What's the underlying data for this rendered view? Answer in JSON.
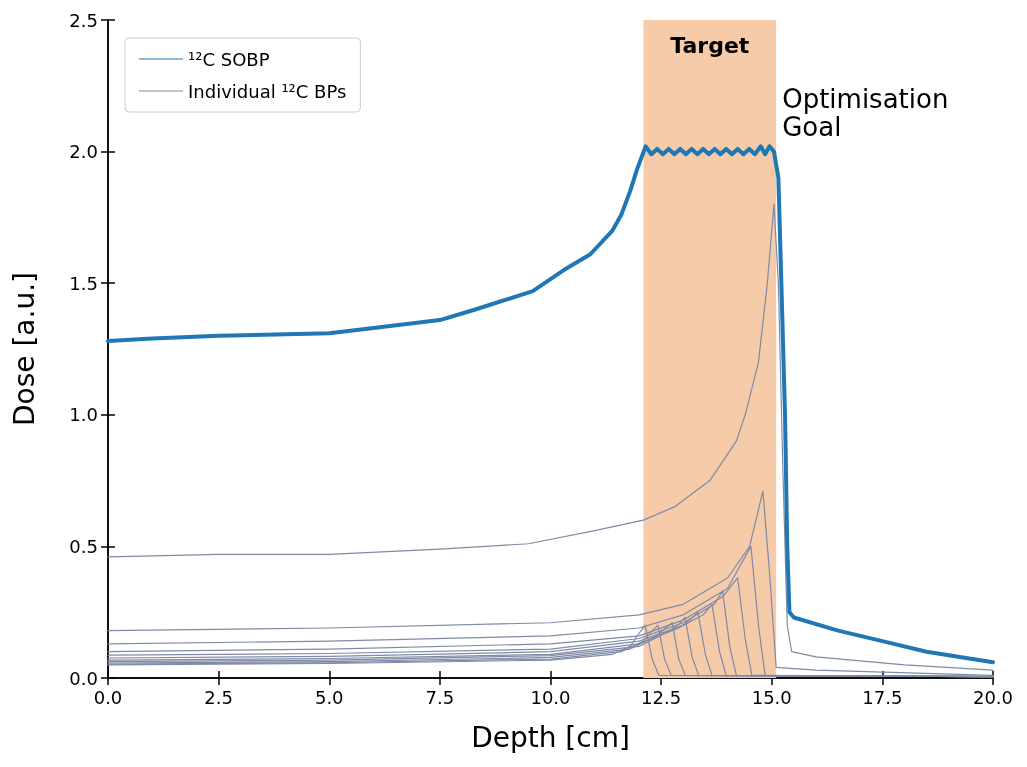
{
  "chart_data": {
    "type": "line",
    "xlabel": "Depth [cm]",
    "ylabel": "Dose [a.u.]",
    "xlim": [
      0,
      20
    ],
    "ylim": [
      0,
      2.5
    ],
    "xticks": [
      {
        "value": 0,
        "label": "0.0"
      },
      2.5,
      {
        "value": 5,
        "label": "5.0"
      },
      7.5,
      {
        "value": 10,
        "label": "10.0"
      },
      12.5,
      {
        "value": 15,
        "label": "15.0"
      },
      17.5,
      {
        "value": 20,
        "label": "20.0"
      }
    ],
    "yticks": [
      {
        "value": 0,
        "label": "0.0"
      },
      0.5,
      {
        "value": 1,
        "label": "1.0"
      },
      1.5,
      {
        "value": 2,
        "label": "2.0"
      },
      2.5
    ],
    "grid": false,
    "legend": "top left",
    "marker": "none",
    "line_style": "solid",
    "bands": [
      {
        "axis": "x",
        "from": 12.1,
        "to": 15.1,
        "label": "Target",
        "color": "#f5cbaa"
      }
    ],
    "annotations": [
      "Optimisation Goal"
    ],
    "series": [
      {
        "name": "¹²C SOBP",
        "color": "#1f77b4",
        "x": [
          0,
          1,
          2.5,
          5,
          6,
          7.5,
          8.3,
          9.6,
          10.3,
          10.9,
          11.4,
          11.6,
          11.8,
          11.95,
          12.15,
          12.28,
          12.41,
          12.54,
          12.67,
          12.8,
          12.93,
          13.06,
          13.19,
          13.32,
          13.45,
          13.58,
          13.71,
          13.84,
          13.97,
          14.1,
          14.23,
          14.36,
          14.49,
          14.62,
          14.75,
          14.85,
          14.95,
          15.05,
          15.15,
          15.3,
          15.35,
          15.4,
          15.5,
          16.5,
          17.5,
          18.5,
          20
        ],
        "values": [
          1.28,
          1.29,
          1.3,
          1.31,
          1.33,
          1.36,
          1.4,
          1.47,
          1.55,
          1.61,
          1.7,
          1.76,
          1.85,
          1.93,
          2.02,
          1.99,
          2.01,
          1.99,
          2.01,
          1.99,
          2.01,
          1.99,
          2.01,
          1.99,
          2.01,
          1.99,
          2.01,
          1.99,
          2.01,
          1.99,
          2.01,
          1.99,
          2.01,
          1.99,
          2.02,
          1.99,
          2.02,
          2.0,
          1.9,
          1.0,
          0.5,
          0.25,
          0.23,
          0.18,
          0.14,
          0.1,
          0.06
        ]
      },
      {
        "name": "Individual ¹²C BPs",
        "color": "#7f8aa6",
        "x": [
          0,
          2.5,
          5,
          7.5,
          9.5,
          11,
          12.1,
          12.8,
          13.6,
          14.2,
          14.4,
          14.7,
          14.9,
          15.05,
          15.15,
          15.25,
          15.35,
          15.45,
          16,
          18,
          20
        ],
        "values": [
          0.46,
          0.47,
          0.47,
          0.49,
          0.51,
          0.56,
          0.6,
          0.65,
          0.75,
          0.9,
          1.0,
          1.2,
          1.5,
          1.8,
          1.5,
          0.8,
          0.2,
          0.1,
          0.08,
          0.05,
          0.03
        ]
      },
      {
        "color": "#7f8aa6",
        "x": [
          0,
          5,
          10,
          12,
          13,
          14,
          14.5,
          14.8,
          14.95,
          15.1,
          16,
          20
        ],
        "values": [
          0.18,
          0.19,
          0.21,
          0.24,
          0.28,
          0.38,
          0.5,
          0.71,
          0.4,
          0.04,
          0.03,
          0.01
        ]
      },
      {
        "color": "#7f8aa6",
        "x": [
          0,
          5,
          10,
          12,
          13,
          14,
          14.53,
          14.7,
          14.85,
          20
        ],
        "values": [
          0.13,
          0.14,
          0.16,
          0.19,
          0.24,
          0.34,
          0.5,
          0.2,
          0.01,
          0.005
        ]
      },
      {
        "color": "#7f8aa6",
        "x": [
          0,
          5,
          10,
          12,
          13,
          13.9,
          14.23,
          14.4,
          14.55,
          20
        ],
        "values": [
          0.1,
          0.11,
          0.13,
          0.16,
          0.22,
          0.31,
          0.38,
          0.15,
          0.01,
          0.005
        ]
      },
      {
        "color": "#7f8aa6",
        "x": [
          0,
          5,
          10,
          12,
          13,
          13.7,
          13.89,
          14.05,
          14.2,
          20
        ],
        "values": [
          0.087,
          0.093,
          0.11,
          0.15,
          0.21,
          0.28,
          0.33,
          0.12,
          0.01,
          0.005
        ]
      },
      {
        "color": "#7f8aa6",
        "x": [
          0,
          5,
          10,
          12,
          13,
          13.45,
          13.65,
          13.82,
          13.97,
          20
        ],
        "values": [
          0.076,
          0.082,
          0.1,
          0.14,
          0.2,
          0.24,
          0.28,
          0.1,
          0.01,
          0.005
        ]
      },
      {
        "color": "#7f8aa6",
        "x": [
          0,
          5,
          10,
          12,
          12.9,
          13.15,
          13.33,
          13.5,
          13.65,
          20
        ],
        "values": [
          0.068,
          0.074,
          0.09,
          0.13,
          0.19,
          0.22,
          0.25,
          0.09,
          0.01,
          0.005
        ]
      },
      {
        "color": "#7f8aa6",
        "x": [
          0,
          5,
          10,
          12,
          12.7,
          12.88,
          13.04,
          13.2,
          13.35,
          20
        ],
        "values": [
          0.062,
          0.068,
          0.085,
          0.12,
          0.18,
          0.2,
          0.23,
          0.08,
          0.01,
          0.005
        ]
      },
      {
        "color": "#7f8aa6",
        "x": [
          0,
          5,
          10,
          11.8,
          12.4,
          12.6,
          12.75,
          12.9,
          13.05,
          20
        ],
        "values": [
          0.057,
          0.062,
          0.078,
          0.11,
          0.16,
          0.19,
          0.21,
          0.07,
          0.01,
          0.005
        ]
      },
      {
        "color": "#7f8aa6",
        "x": [
          0,
          5,
          10,
          11.6,
          12.1,
          12.3,
          12.43,
          12.58,
          12.73,
          20
        ],
        "values": [
          0.053,
          0.058,
          0.072,
          0.1,
          0.14,
          0.18,
          0.2,
          0.07,
          0.01,
          0.005
        ]
      },
      {
        "color": "#7f8aa6",
        "x": [
          0,
          5,
          10,
          11.4,
          11.8,
          12.0,
          12.14,
          12.3,
          12.45,
          20
        ],
        "values": [
          0.05,
          0.055,
          0.068,
          0.09,
          0.12,
          0.17,
          0.2,
          0.07,
          0.01,
          0.005
        ]
      }
    ]
  }
}
